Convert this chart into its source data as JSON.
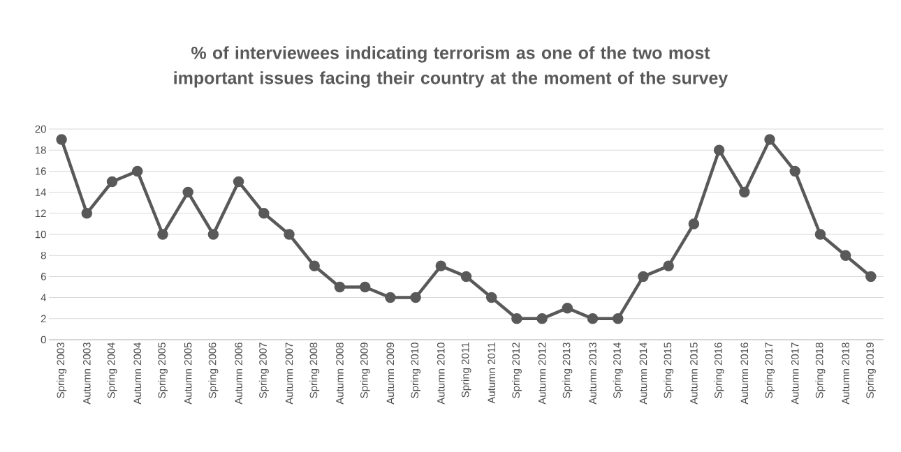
{
  "chart_data": {
    "type": "line",
    "title": "% of interviewees indicating terrorism as one of the two most important issues facing their country at the moment of the survey",
    "categories": [
      "Spring 2003",
      "Autumn 2003",
      "Spring 2004",
      "Autumn 2004",
      "Spring 2005",
      "Autumn 2005",
      "Spring 2006",
      "Autumn 2006",
      "Spring 2007",
      "Autumn 2007",
      "Spring 2008",
      "Autumn 2008",
      "Spring 2009",
      "Autumn 2009",
      "Spring 2010",
      "Autumn 2010",
      "Spring 2011",
      "Autumn 2011",
      "Spring 2012",
      "Autumn 2012",
      "Spring 2013",
      "Autumn 2013",
      "Spring 2014",
      "Autumn 2014",
      "Spring 2015",
      "Autumn 2015",
      "Spring 2016",
      "Autumn 2016",
      "Spring 2017",
      "Autumn 2017",
      "Spring 2018",
      "Autumn 2018",
      "Spring 2019"
    ],
    "series": [
      {
        "color": "#595959",
        "values": [
          19,
          12,
          15,
          16,
          10,
          14,
          10,
          15,
          12,
          10,
          7,
          5,
          5,
          4,
          4,
          7,
          6,
          4,
          2,
          2,
          3,
          2,
          2,
          6,
          7,
          11,
          18,
          14,
          19,
          16,
          10,
          8,
          6
        ]
      }
    ],
    "ylim": [
      0,
      20
    ],
    "yticks": [
      0,
      2,
      4,
      6,
      8,
      10,
      12,
      14,
      16,
      18,
      20
    ],
    "grid": "y",
    "marker": "circle",
    "line_style": "solid"
  }
}
